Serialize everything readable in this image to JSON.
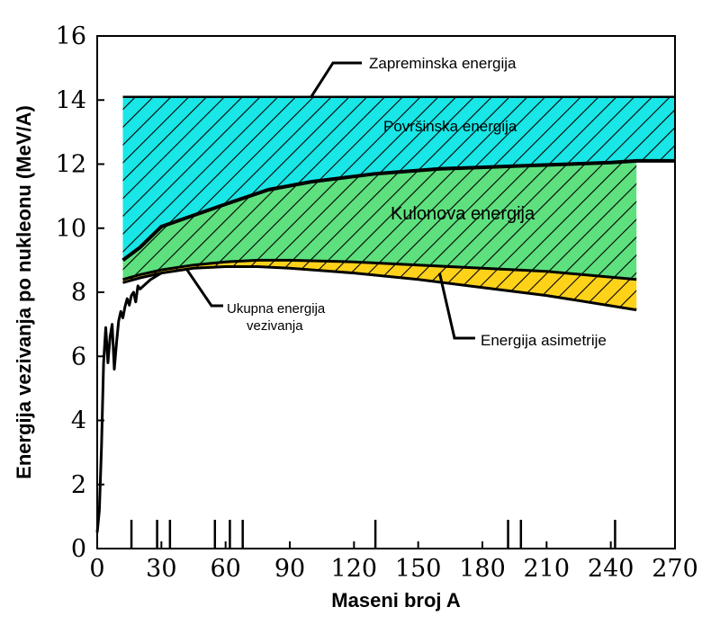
{
  "chart_data": {
    "type": "area",
    "title": "",
    "xlabel": "Maseni broj A",
    "ylabel": "Energija vezivanja po nukleonu (MeV/A)",
    "xlim": [
      0,
      270
    ],
    "ylim": [
      0,
      16
    ],
    "x_ticks": [
      0,
      30,
      60,
      90,
      120,
      150,
      180,
      210,
      240,
      270
    ],
    "y_ticks": [
      0,
      2,
      4,
      6,
      8,
      10,
      12,
      14,
      16
    ],
    "grid": false,
    "bands": [
      {
        "name": "Zapreminska energija",
        "label": "Zapreminska energija",
        "color": "#ffffff",
        "upper_constant": 14.1,
        "x_range": [
          12,
          270
        ]
      },
      {
        "name": "Površinska energija",
        "label": "Površinska energija",
        "color": "#19e6e6",
        "upper_constant": 14.1,
        "lower_series": "after_surface",
        "x_range": [
          12,
          270
        ]
      },
      {
        "name": "Kulonova energija",
        "label": "Kulonova energija",
        "color": "#5ee07e",
        "upper_series": "after_surface",
        "lower_series": "after_coulomb",
        "x_range": [
          12,
          252
        ]
      },
      {
        "name": "Energija asimetrije",
        "label": "Energija asimetrije",
        "color": "#ffd21a",
        "upper_series": "after_coulomb",
        "lower_series": "total",
        "x_range": [
          12,
          252
        ]
      }
    ],
    "series": [
      {
        "name": "after_surface",
        "x": [
          12,
          20,
          30,
          45,
          60,
          80,
          100,
          130,
          160,
          200,
          240,
          252,
          270
        ],
        "values": [
          9.0,
          9.4,
          10.05,
          10.4,
          10.75,
          11.2,
          11.45,
          11.7,
          11.85,
          11.95,
          12.05,
          12.1,
          12.1
        ]
      },
      {
        "name": "after_coulomb",
        "x": [
          12,
          20,
          30,
          45,
          60,
          75,
          90,
          120,
          150,
          180,
          210,
          252
        ],
        "values": [
          8.4,
          8.55,
          8.7,
          8.85,
          8.95,
          9.0,
          9.0,
          8.95,
          8.85,
          8.75,
          8.65,
          8.4
        ]
      },
      {
        "name": "total",
        "x": [
          12,
          20,
          30,
          45,
          60,
          75,
          90,
          120,
          150,
          180,
          210,
          252
        ],
        "values": [
          8.3,
          8.45,
          8.6,
          8.75,
          8.8,
          8.8,
          8.75,
          8.6,
          8.4,
          8.15,
          7.9,
          7.45
        ]
      },
      {
        "name": "Ukupna energija vezivanja (mjerena)",
        "x": [
          0,
          1,
          2,
          3,
          4,
          5,
          6,
          7,
          8,
          9,
          10,
          11,
          12,
          13,
          14,
          15,
          16,
          17,
          18,
          19,
          20,
          25,
          30
        ],
        "values": [
          0.5,
          1.2,
          3.2,
          5.8,
          6.9,
          5.8,
          6.6,
          7.0,
          5.6,
          6.4,
          7.1,
          7.4,
          7.2,
          7.55,
          7.8,
          7.6,
          7.9,
          8.0,
          7.7,
          8.2,
          8.1,
          8.4,
          8.6
        ]
      }
    ],
    "annotations": [
      {
        "text": "Zapreminska energija",
        "target_x": 100,
        "target_y": 14.1
      },
      {
        "text": "Površinska energija"
      },
      {
        "text": "Kulonova energija"
      },
      {
        "line1": "Ukupna energija",
        "line2": "vezivanja",
        "target_x": 42,
        "target_y": 8.7
      },
      {
        "text": "Energija asimetrije",
        "target_x": 160,
        "target_y": 8.6
      }
    ],
    "marker_ticks_x": [
      16,
      28,
      34,
      55,
      62,
      68,
      130,
      192,
      198,
      242
    ],
    "colors": {
      "surface": "#19e6e6",
      "coulomb": "#5ee07e",
      "asymmetry": "#ffd21a",
      "line": "#000000"
    }
  }
}
